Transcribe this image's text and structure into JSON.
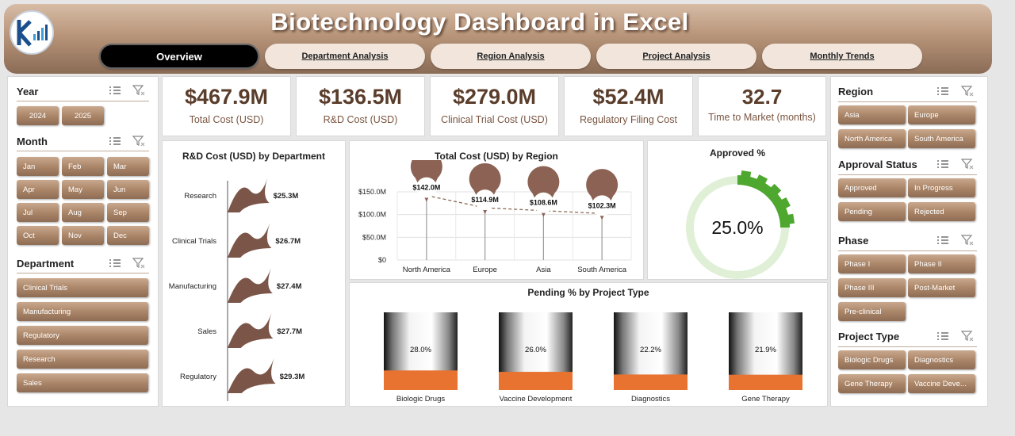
{
  "header": {
    "title": "Biotechnology Dashboard in Excel"
  },
  "nav": [
    {
      "label": "Overview",
      "active": true
    },
    {
      "label": "Department Analysis"
    },
    {
      "label": "Region Analysis"
    },
    {
      "label": "Project Analysis"
    },
    {
      "label": "Monthly Trends"
    }
  ],
  "left_filters": {
    "year": {
      "label": "Year",
      "items": [
        "2024",
        "2025"
      ]
    },
    "month": {
      "label": "Month",
      "items": [
        "Jan",
        "Feb",
        "Mar",
        "Apr",
        "May",
        "Jun",
        "Jul",
        "Aug",
        "Sep",
        "Oct",
        "Nov",
        "Dec"
      ]
    },
    "department": {
      "label": "Department",
      "items": [
        "Clinical Trials",
        "Manufacturing",
        "Regulatory",
        "Research",
        "Sales"
      ]
    }
  },
  "kpis": [
    {
      "value": "$467.9M",
      "label": "Total Cost (USD)"
    },
    {
      "value": "$136.5M",
      "label": "R&D Cost (USD)"
    },
    {
      "value": "$279.0M",
      "label": "Clinical Trial Cost (USD)"
    },
    {
      "value": "$52.4M",
      "label": "Regulatory Filing Cost"
    },
    {
      "value": "32.7",
      "label": "Time to Market (months)"
    }
  ],
  "right_filters": {
    "region": {
      "label": "Region",
      "items": [
        "Asia",
        "Europe",
        "North America",
        "South America"
      ]
    },
    "approval": {
      "label": "Approval Status",
      "items": [
        "Approved",
        "In Progress",
        "Pending",
        "Rejected"
      ]
    },
    "phase": {
      "label": "Phase",
      "items": [
        "Phase I",
        "Phase II",
        "Phase III",
        "Post-Market",
        "Pre-clinical"
      ]
    },
    "project_type": {
      "label": "Project Type",
      "items": [
        "Biologic Drugs",
        "Diagnostics",
        "Gene Therapy",
        "Vaccine Deve..."
      ]
    }
  },
  "chart_data": [
    {
      "type": "bar",
      "title": "R&D Cost (USD) by Department",
      "categories": [
        "Research",
        "Clinical Trials",
        "Manufacturing",
        "Sales",
        "Regulatory"
      ],
      "values": [
        25.3,
        26.7,
        27.4,
        27.7,
        29.3
      ],
      "data_labels": [
        "$25.3M",
        "$26.7M",
        "$27.4M",
        "$27.7M",
        "$29.3M"
      ],
      "bar_color": "#7b5548"
    },
    {
      "type": "line",
      "title": "Total Cost (USD) by Region",
      "categories": [
        "North America",
        "Europe",
        "Asia",
        "South America"
      ],
      "values": [
        142.0,
        114.9,
        108.6,
        102.3
      ],
      "data_labels": [
        "$142.0M",
        "$114.9M",
        "$108.6M",
        "$102.3M"
      ],
      "ylim": [
        0,
        150
      ],
      "yticks": [
        "$0",
        "$50.0M",
        "$100.0M",
        "$150.0M"
      ],
      "ytick_values": [
        0,
        50,
        100,
        150
      ],
      "grid": true,
      "marker_color": "#8b6253"
    },
    {
      "type": "pie",
      "title": "Approved %",
      "value": 0.25,
      "value_label": "25.0%",
      "ring_color": "#4ea72e",
      "track_color": "#dff0d6"
    },
    {
      "type": "bar",
      "title": "Pending % by Project Type",
      "categories": [
        "Biologic Drugs",
        "Vaccine Development",
        "Diagnostics",
        "Gene Therapy"
      ],
      "values": [
        28.0,
        26.0,
        22.2,
        21.9
      ],
      "data_labels": [
        "28.0%",
        "26.0%",
        "22.2%",
        "21.9%"
      ],
      "fill_color": "#e8722f"
    }
  ]
}
